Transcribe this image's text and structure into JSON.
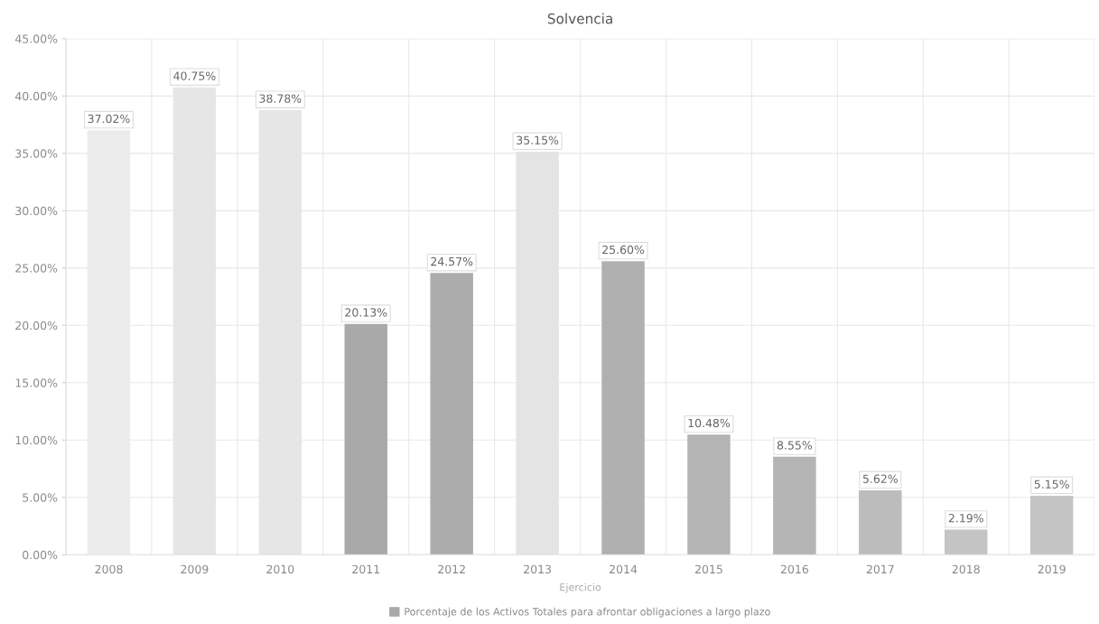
{
  "chart_data": {
    "type": "bar",
    "title": "Solvencia",
    "xlabel": "Ejercicio",
    "categories": [
      "2008",
      "2009",
      "2010",
      "2011",
      "2012",
      "2013",
      "2014",
      "2015",
      "2016",
      "2017",
      "2018",
      "2019"
    ],
    "series": [
      {
        "name": "Porcentaje de los Activos Totales para afrontar obligaciones a largo plazo",
        "color": "#a9a9a9",
        "values": [
          37.02,
          40.75,
          38.78,
          20.13,
          24.57,
          35.15,
          25.6,
          10.48,
          8.55,
          5.62,
          2.19,
          5.15
        ],
        "colors": [
          "#ececec",
          "#e6e6e6",
          "#e6e6e6",
          "#a9a9a9",
          "#acacac",
          "#e4e4e4",
          "#b0b0b0",
          "#b4b4b4",
          "#b4b4b4",
          "#bcbcbc",
          "#c4c4c4",
          "#c4c4c4"
        ],
        "value_labels": [
          "37.02%",
          "40.75%",
          "38.78%",
          "20.13%",
          "24.57%",
          "35.15%",
          "25.60%",
          "10.48%",
          "8.55%",
          "5.62%",
          "2.19%",
          "5.15%"
        ]
      }
    ],
    "ylim": [
      0,
      45
    ],
    "yticks": [
      {
        "value": 0,
        "label": "0.00%"
      },
      {
        "value": 5,
        "label": "5.00%"
      },
      {
        "value": 10,
        "label": "10.00%"
      },
      {
        "value": 15,
        "label": "15.00%"
      },
      {
        "value": 20,
        "label": "20.00%"
      },
      {
        "value": 25,
        "label": "25.00%"
      },
      {
        "value": 30,
        "label": "30.00%"
      },
      {
        "value": 35,
        "label": "35.00%"
      },
      {
        "value": 40,
        "label": "40.00%"
      },
      {
        "value": 45,
        "label": "45.00%"
      }
    ],
    "grid": true,
    "legend": "bottom"
  }
}
